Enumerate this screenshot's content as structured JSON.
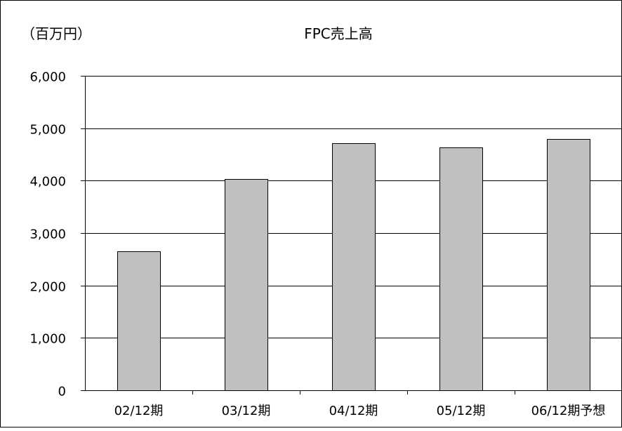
{
  "chart_data": {
    "type": "bar",
    "title": "FPC売上高",
    "unit_label": "（百万円）",
    "xlabel": "",
    "ylabel": "",
    "categories": [
      "02/12期",
      "03/12期",
      "04/12期",
      "05/12期",
      "06/12期予想"
    ],
    "values": [
      2650,
      4030,
      4720,
      4630,
      4800
    ],
    "ylim": [
      0,
      6000
    ],
    "yticks": [
      0,
      1000,
      2000,
      3000,
      4000,
      5000,
      6000
    ],
    "ytick_labels": [
      "0",
      "1,000",
      "2,000",
      "3,000",
      "4,000",
      "5,000",
      "6,000"
    ],
    "grid": true,
    "legend": "none",
    "colors": {
      "bar_fill": "#c0c0c0",
      "bar_stroke": "#000000",
      "gridline": "#000000",
      "background": "#ffffff"
    }
  }
}
